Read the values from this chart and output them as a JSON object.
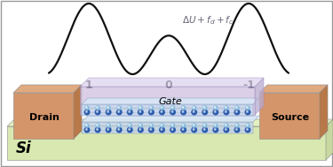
{
  "fig_width": 3.75,
  "fig_height": 1.89,
  "dpi": 100,
  "bg_color": "#ffffff",
  "border_color": "#999999",
  "curve_color": "#111111",
  "curve_lw": 1.6,
  "label_0": "0",
  "label_1": "1",
  "label_m1": "-1",
  "drain_color_front": "#d4956a",
  "drain_color_top": "#e0aa80",
  "drain_color_side": "#b87848",
  "source_color_front": "#d4956a",
  "source_color_top": "#e0aa80",
  "source_color_side": "#b87848",
  "gate_color_front": "#cec0e0",
  "gate_color_top": "#ddd4ef",
  "gate_color_side": "#b8aad0",
  "si_color_front": "#d8e8b0",
  "si_color_top": "#e4f0c0",
  "channel_bg": "#d0e0f0",
  "channel_line": "#8899bb",
  "atom_dark": "#2255aa",
  "atom_light": "#88bbdd",
  "bond_color": "#aabbcc",
  "drain_label": "Drain",
  "source_label": "Source",
  "gate_label": "Gate",
  "si_label": "Si",
  "formula_color": "#666677",
  "label_fontsize": 9,
  "gate_fontsize": 8,
  "si_fontsize": 12
}
